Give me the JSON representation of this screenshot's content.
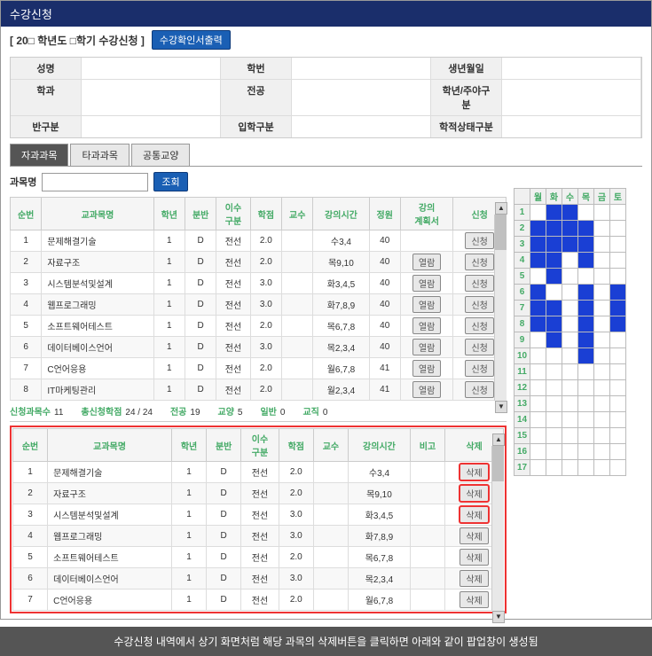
{
  "header": {
    "title": "수강신청"
  },
  "subheader": {
    "text": "[ 20□ 학년도 □학기 수강신청 ]",
    "btn": "수강확인서출력"
  },
  "info": {
    "rows": [
      [
        {
          "lbl": "성명",
          "val": ""
        },
        {
          "lbl": "학번",
          "val": ""
        },
        {
          "lbl": "생년월일",
          "val": ""
        }
      ],
      [
        {
          "lbl": "학과",
          "val": ""
        },
        {
          "lbl": "전공",
          "val": ""
        },
        {
          "lbl": "학년/주야구분",
          "val": ""
        }
      ],
      [
        {
          "lbl": "반구분",
          "val": ""
        },
        {
          "lbl": "입학구분",
          "val": ""
        },
        {
          "lbl": "학적상태구분",
          "val": ""
        }
      ]
    ]
  },
  "tabs": [
    {
      "label": "자과과목",
      "active": true
    },
    {
      "label": "타과과목",
      "active": false
    },
    {
      "label": "공통교양",
      "active": false
    }
  ],
  "search": {
    "label": "과목명",
    "btn": "조회"
  },
  "table1": {
    "headers": [
      "순번",
      "교과목명",
      "학년",
      "분반",
      "이수\n구분",
      "학점",
      "교수",
      "강의시간",
      "정원",
      "강의\n계획서",
      "신청"
    ],
    "rows": [
      {
        "n": "1",
        "name": "문제해결기술",
        "y": "1",
        "c": "D",
        "t": "전선",
        "cr": "2.0",
        "p": "",
        "time": "수3,4",
        "cap": "40",
        "plan": "",
        "btn": "신청"
      },
      {
        "n": "2",
        "name": "자료구조",
        "y": "1",
        "c": "D",
        "t": "전선",
        "cr": "2.0",
        "p": "",
        "time": "목9,10",
        "cap": "40",
        "plan": "열람",
        "btn": "신청"
      },
      {
        "n": "3",
        "name": "시스템분석및설계",
        "y": "1",
        "c": "D",
        "t": "전선",
        "cr": "3.0",
        "p": "",
        "time": "화3,4,5",
        "cap": "40",
        "plan": "열람",
        "btn": "신청"
      },
      {
        "n": "4",
        "name": "웹프로그래밍",
        "y": "1",
        "c": "D",
        "t": "전선",
        "cr": "3.0",
        "p": "",
        "time": "화7,8,9",
        "cap": "40",
        "plan": "열람",
        "btn": "신청"
      },
      {
        "n": "5",
        "name": "소프트웨어테스트",
        "y": "1",
        "c": "D",
        "t": "전선",
        "cr": "2.0",
        "p": "",
        "time": "목6,7,8",
        "cap": "40",
        "plan": "열람",
        "btn": "신청"
      },
      {
        "n": "6",
        "name": "데이터베이스언어",
        "y": "1",
        "c": "D",
        "t": "전선",
        "cr": "3.0",
        "p": "",
        "time": "목2,3,4",
        "cap": "40",
        "plan": "열람",
        "btn": "신청"
      },
      {
        "n": "7",
        "name": "C언어응용",
        "y": "1",
        "c": "D",
        "t": "전선",
        "cr": "2.0",
        "p": "",
        "time": "월6,7,8",
        "cap": "41",
        "plan": "열람",
        "btn": "신청"
      },
      {
        "n": "8",
        "name": "IT마케팅관리",
        "y": "1",
        "c": "D",
        "t": "전선",
        "cr": "2.0",
        "p": "",
        "time": "월2,3,4",
        "cap": "41",
        "plan": "열람",
        "btn": "신청"
      }
    ]
  },
  "summary": {
    "items": [
      {
        "k": "신청과목수",
        "v": "11"
      },
      {
        "k": "총신청학점",
        "v": "24 / 24"
      },
      {
        "k": "전공",
        "v": "19"
      },
      {
        "k": "교양",
        "v": "5"
      },
      {
        "k": "일반",
        "v": "0"
      },
      {
        "k": "교직",
        "v": "0"
      }
    ]
  },
  "table2": {
    "headers": [
      "순번",
      "교과목명",
      "학년",
      "분반",
      "이수\n구분",
      "학점",
      "교수",
      "강의시간",
      "비고",
      "삭제"
    ],
    "rows": [
      {
        "n": "1",
        "name": "문제해결기술",
        "y": "1",
        "c": "D",
        "t": "전선",
        "cr": "2.0",
        "p": "",
        "time": "수3,4",
        "m": "",
        "btn": "삭제",
        "hl": true
      },
      {
        "n": "2",
        "name": "자료구조",
        "y": "1",
        "c": "D",
        "t": "전선",
        "cr": "2.0",
        "p": "",
        "time": "목9,10",
        "m": "",
        "btn": "삭제",
        "hl": true
      },
      {
        "n": "3",
        "name": "시스템분석및설계",
        "y": "1",
        "c": "D",
        "t": "전선",
        "cr": "3.0",
        "p": "",
        "time": "화3,4,5",
        "m": "",
        "btn": "삭제",
        "hl": true
      },
      {
        "n": "4",
        "name": "웹프로그래밍",
        "y": "1",
        "c": "D",
        "t": "전선",
        "cr": "3.0",
        "p": "",
        "time": "화7,8,9",
        "m": "",
        "btn": "삭제",
        "hl": false
      },
      {
        "n": "5",
        "name": "소프트웨어테스트",
        "y": "1",
        "c": "D",
        "t": "전선",
        "cr": "2.0",
        "p": "",
        "time": "목6,7,8",
        "m": "",
        "btn": "삭제",
        "hl": false
      },
      {
        "n": "6",
        "name": "데이터베이스언어",
        "y": "1",
        "c": "D",
        "t": "전선",
        "cr": "3.0",
        "p": "",
        "time": "목2,3,4",
        "m": "",
        "btn": "삭제",
        "hl": false
      },
      {
        "n": "7",
        "name": "C언어응용",
        "y": "1",
        "c": "D",
        "t": "전선",
        "cr": "2.0",
        "p": "",
        "time": "월6,7,8",
        "m": "",
        "btn": "삭제",
        "hl": false
      }
    ]
  },
  "schedule": {
    "days": [
      "월",
      "화",
      "수",
      "목",
      "금",
      "토"
    ],
    "periods": 17,
    "filled": [
      [
        1,
        1
      ],
      [
        1,
        2
      ],
      [
        2,
        0
      ],
      [
        2,
        1
      ],
      [
        2,
        2
      ],
      [
        2,
        3
      ],
      [
        3,
        0
      ],
      [
        3,
        1
      ],
      [
        3,
        2
      ],
      [
        3,
        3
      ],
      [
        4,
        0
      ],
      [
        4,
        1
      ],
      [
        4,
        3
      ],
      [
        5,
        1
      ],
      [
        6,
        0
      ],
      [
        6,
        3
      ],
      [
        6,
        5
      ],
      [
        7,
        0
      ],
      [
        7,
        1
      ],
      [
        7,
        3
      ],
      [
        7,
        5
      ],
      [
        8,
        0
      ],
      [
        8,
        1
      ],
      [
        8,
        3
      ],
      [
        8,
        5
      ],
      [
        9,
        1
      ],
      [
        9,
        3
      ],
      [
        10,
        3
      ]
    ]
  },
  "footer": {
    "text": "수강신청 내역에서 상기 화면처럼 해당 과목의 삭제버튼을 클릭하면 아래와 같이 팝업창이 생성됨"
  },
  "colors": {
    "accent": "#1a2e6b",
    "btn": "#1a5fb4",
    "fill": "#1a3fd4",
    "border_r": "#e33",
    "th": "#4a6"
  }
}
